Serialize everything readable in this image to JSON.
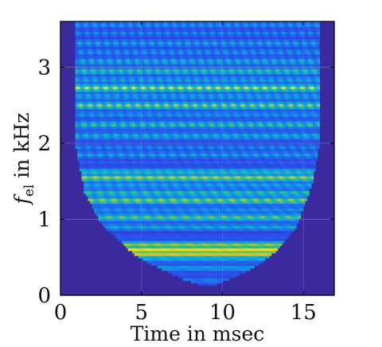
{
  "chart_data": {
    "type": "heatmap",
    "title": "",
    "xlabel": "Time in msec",
    "ylabel_symbol": "f",
    "ylabel_subscript": "el",
    "ylabel_suffix": " in kHz",
    "xlim": [
      0,
      16.9
    ],
    "ylim": [
      0,
      3.6
    ],
    "xticks": [
      0,
      5,
      10,
      15
    ],
    "yticks": [
      0,
      1,
      2,
      3
    ],
    "grid": true,
    "colormap": "parula",
    "colors": {
      "background": "#3a2a9e",
      "low": "#1e3fd8",
      "mid": "#19b0d6",
      "high": "#f5ea1e"
    },
    "cone_of_influence": {
      "x": [
        0.9,
        1.5,
        2.5,
        3.5,
        4.5,
        5.5,
        6.5,
        7.5,
        8.5,
        9.0,
        9.5,
        10.5,
        11.5,
        12.5,
        13.5,
        14.5,
        15.5,
        16.0
      ],
      "y": [
        2.0,
        1.35,
        0.95,
        0.75,
        0.55,
        0.42,
        0.32,
        0.22,
        0.14,
        0.12,
        0.14,
        0.22,
        0.32,
        0.45,
        0.62,
        0.88,
        1.45,
        2.0
      ]
    },
    "bands": [
      {
        "f": 0.2,
        "level": 0.3,
        "mod": 0.25
      },
      {
        "f": 0.28,
        "level": 0.15,
        "mod": 0.15
      },
      {
        "f": 0.36,
        "level": 0.4,
        "mod": 0.2
      },
      {
        "f": 0.48,
        "level": 0.35,
        "mod": 0.2
      },
      {
        "f": 0.54,
        "level": 0.93,
        "mod": 0.05
      },
      {
        "f": 0.6,
        "level": 1.0,
        "mod": 0.03
      },
      {
        "f": 0.67,
        "level": 0.7,
        "mod": 0.15
      },
      {
        "f": 0.78,
        "level": 0.18,
        "mod": 0.15
      },
      {
        "f": 0.9,
        "level": 0.42,
        "mod": 0.3
      },
      {
        "f": 1.03,
        "level": 0.62,
        "mod": 0.35
      },
      {
        "f": 1.13,
        "level": 0.35,
        "mod": 0.35
      },
      {
        "f": 1.25,
        "level": 0.72,
        "mod": 0.4
      },
      {
        "f": 1.35,
        "level": 0.55,
        "mod": 0.45
      },
      {
        "f": 1.45,
        "level": 0.4,
        "mod": 0.4
      },
      {
        "f": 1.55,
        "level": 0.78,
        "mod": 0.3
      },
      {
        "f": 1.63,
        "level": 0.5,
        "mod": 0.3
      },
      {
        "f": 1.75,
        "level": 0.2,
        "mod": 0.3
      },
      {
        "f": 1.85,
        "level": 0.4,
        "mod": 0.5
      },
      {
        "f": 1.95,
        "level": 0.3,
        "mod": 0.5
      },
      {
        "f": 2.1,
        "level": 0.45,
        "mod": 0.5
      },
      {
        "f": 2.25,
        "level": 0.55,
        "mod": 0.55
      },
      {
        "f": 2.38,
        "level": 0.35,
        "mod": 0.4
      },
      {
        "f": 2.5,
        "level": 0.7,
        "mod": 0.55
      },
      {
        "f": 2.62,
        "level": 0.4,
        "mod": 0.5
      },
      {
        "f": 2.73,
        "level": 0.8,
        "mod": 0.5
      },
      {
        "f": 2.84,
        "level": 0.4,
        "mod": 0.5
      },
      {
        "f": 2.95,
        "level": 0.55,
        "mod": 0.5
      },
      {
        "f": 3.08,
        "level": 0.45,
        "mod": 0.6
      },
      {
        "f": 3.2,
        "level": 0.35,
        "mod": 0.6
      },
      {
        "f": 3.32,
        "level": 0.4,
        "mod": 0.6
      },
      {
        "f": 3.45,
        "level": 0.3,
        "mod": 0.6
      },
      {
        "f": 3.56,
        "level": 0.35,
        "mod": 0.6
      }
    ]
  }
}
